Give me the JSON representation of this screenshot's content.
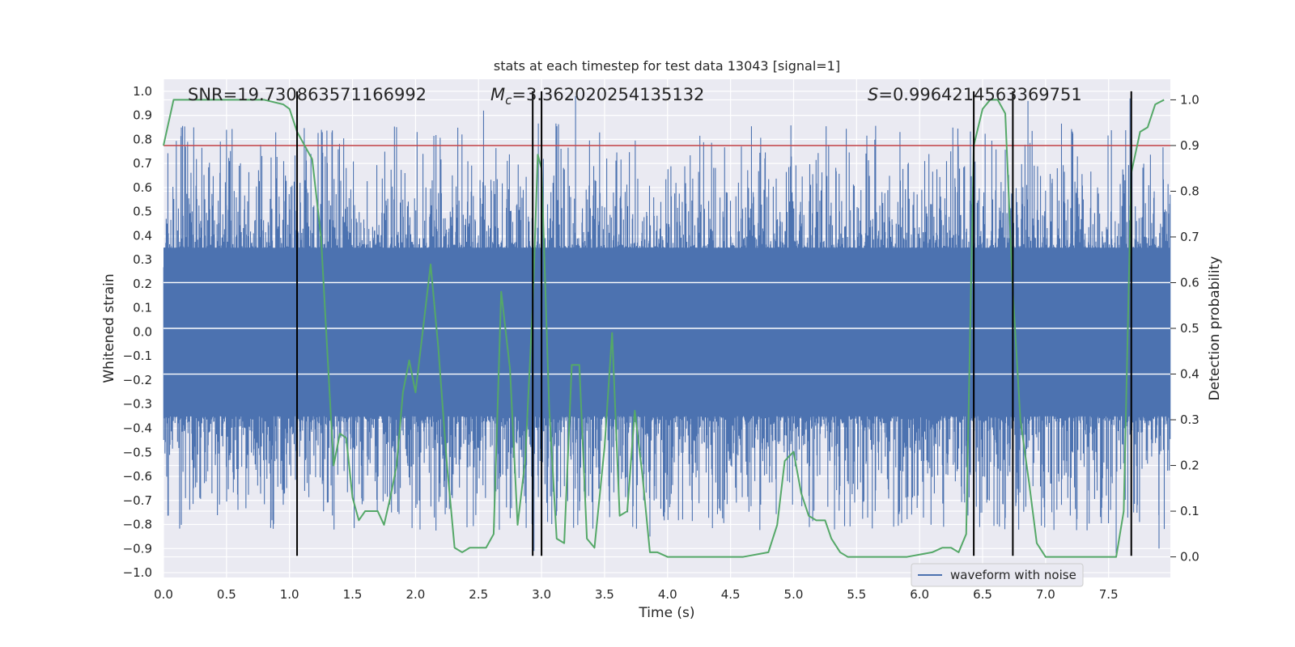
{
  "chart_data": {
    "type": "line",
    "title": "stats at each timestep for test data 13043 [signal=1]",
    "xlabel": "Time (s)",
    "ylabel": "Whitened strain",
    "y2label": "Detection probability",
    "xlim": [
      0.0,
      7.99
    ],
    "ylim": [
      -1.02,
      1.05
    ],
    "y2lim": [
      -0.045,
      1.045
    ],
    "xticks": [
      "0.0",
      "0.5",
      "1.0",
      "1.5",
      "2.0",
      "2.5",
      "3.0",
      "3.5",
      "4.0",
      "4.5",
      "5.0",
      "5.5",
      "6.0",
      "6.5",
      "7.0",
      "7.5"
    ],
    "yticks": [
      "1.0",
      "0.9",
      "0.8",
      "0.7",
      "0.6",
      "0.5",
      "0.4",
      "0.3",
      "0.2",
      "0.1",
      "0.0",
      "−0.1",
      "−0.2",
      "−0.3",
      "−0.4",
      "−0.5",
      "−0.6",
      "−0.7",
      "−0.8",
      "−0.9",
      "−1.0"
    ],
    "y2ticks": [
      "1.0",
      "0.9",
      "0.8",
      "0.7",
      "0.6",
      "0.5",
      "0.4",
      "0.3",
      "0.2",
      "0.1",
      "0.0"
    ],
    "grid": true,
    "legend": {
      "position": "lower-right",
      "entries": [
        {
          "label": "waveform with noise",
          "color": "#4c72b0"
        }
      ]
    },
    "annotations": [
      {
        "text": "SNR=19.730863571166992"
      },
      {
        "prefix": "M",
        "sub": "c",
        "text": "=3.362020254135132"
      },
      {
        "prefix": "S",
        "text": "=0.9964214563369751"
      }
    ],
    "threshold": {
      "axis": "y2",
      "value": 0.9,
      "color": "#c44e52"
    },
    "vertical_lines": {
      "x": [
        1.06,
        2.93,
        3.0,
        6.43,
        6.74,
        7.68
      ],
      "ymin": -0.93,
      "ymax": 1.0,
      "color": "#000000"
    },
    "series": [
      {
        "name": "waveform with noise",
        "axis": "y",
        "color": "#4c72b0",
        "core_amplitude": 0.35,
        "spike_max": 0.98,
        "spike_min": -0.93,
        "peak_spikes": [
          {
            "x": 0.24,
            "y": 0.85
          },
          {
            "x": 0.5,
            "y": 0.84
          },
          {
            "x": 1.26,
            "y": 0.83
          },
          {
            "x": 2.54,
            "y": 0.92
          },
          {
            "x": 3.27,
            "y": 0.98
          },
          {
            "x": 6.86,
            "y": 0.96
          },
          {
            "x": 7.67,
            "y": 0.97
          },
          {
            "x": 7.56,
            "y": -0.92
          },
          {
            "x": 2.94,
            "y": -0.91
          },
          {
            "x": 7.9,
            "y": -0.9
          },
          {
            "x": 3.86,
            "y": -0.85
          }
        ]
      },
      {
        "name": "",
        "axis": "y2",
        "color": "#55a868",
        "x": [
          0.0,
          0.08,
          0.2,
          0.5,
          0.8,
          0.95,
          1.0,
          1.06,
          1.12,
          1.18,
          1.25,
          1.3,
          1.35,
          1.4,
          1.45,
          1.5,
          1.55,
          1.6,
          1.65,
          1.7,
          1.75,
          1.8,
          1.85,
          1.9,
          1.95,
          2.0,
          2.06,
          2.12,
          2.18,
          2.25,
          2.31,
          2.37,
          2.43,
          2.5,
          2.56,
          2.62,
          2.68,
          2.75,
          2.81,
          2.87,
          2.93,
          2.97,
          3.0,
          3.06,
          3.12,
          3.18,
          3.24,
          3.3,
          3.36,
          3.42,
          3.5,
          3.56,
          3.62,
          3.68,
          3.74,
          3.8,
          3.86,
          3.92,
          4.0,
          4.2,
          4.4,
          4.6,
          4.8,
          4.87,
          4.93,
          5.0,
          5.06,
          5.12,
          5.18,
          5.25,
          5.3,
          5.37,
          5.43,
          5.5,
          5.7,
          5.9,
          6.1,
          6.18,
          6.25,
          6.31,
          6.37,
          6.43,
          6.5,
          6.56,
          6.62,
          6.68,
          6.74,
          6.8,
          6.87,
          6.93,
          7.0,
          7.2,
          7.4,
          7.56,
          7.62,
          7.68,
          7.75,
          7.81,
          7.87,
          7.94
        ],
        "values": [
          0.9,
          1.0,
          1.0,
          1.0,
          1.0,
          0.99,
          0.98,
          0.93,
          0.9,
          0.87,
          0.7,
          0.45,
          0.2,
          0.27,
          0.26,
          0.13,
          0.08,
          0.1,
          0.1,
          0.1,
          0.07,
          0.13,
          0.2,
          0.36,
          0.43,
          0.36,
          0.5,
          0.64,
          0.46,
          0.2,
          0.02,
          0.01,
          0.02,
          0.02,
          0.02,
          0.05,
          0.58,
          0.41,
          0.07,
          0.21,
          0.55,
          0.88,
          0.85,
          0.33,
          0.04,
          0.03,
          0.42,
          0.42,
          0.04,
          0.02,
          0.24,
          0.49,
          0.09,
          0.1,
          0.32,
          0.18,
          0.01,
          0.01,
          0.0,
          0.0,
          0.0,
          0.0,
          0.01,
          0.07,
          0.21,
          0.23,
          0.14,
          0.09,
          0.08,
          0.08,
          0.04,
          0.01,
          0.0,
          0.0,
          0.0,
          0.0,
          0.01,
          0.02,
          0.02,
          0.01,
          0.05,
          0.9,
          0.98,
          1.0,
          1.0,
          0.97,
          0.58,
          0.3,
          0.16,
          0.03,
          0.0,
          0.0,
          0.0,
          0.0,
          0.1,
          0.84,
          0.93,
          0.94,
          0.99,
          1.0
        ]
      }
    ]
  }
}
